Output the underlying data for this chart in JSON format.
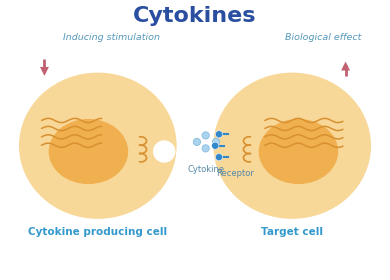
{
  "title": "Cytokines",
  "title_color": "#2a4fa0",
  "title_fontsize": 16,
  "bg_color": "#ffffff",
  "label_left": "Cytokine producing cell",
  "label_right": "Target cell",
  "label_color": "#3399cc",
  "label_fontsize": 7.5,
  "annot_stim": "Inducing stimulation",
  "annot_bio": "Biological effect",
  "annot_color": "#5599bb",
  "annot_fontsize": 6.8,
  "cytokine_label": "Cytokine",
  "receptor_label": "Receptor",
  "small_label_color": "#5588aa",
  "small_label_fontsize": 6.0,
  "cell_outer_color": "#f8d898",
  "cell_inner_color": "#f5c878",
  "nucleus_color": "#f0b050",
  "organelle_color": "#d89030",
  "arrow_color": "#c06070",
  "arrow_fill": "#c06070",
  "cytokine_color": "#aad4ee",
  "cytokine_edge": "#88bbdd",
  "receptor_color": "#3388cc",
  "notch_white": "#ffffff"
}
